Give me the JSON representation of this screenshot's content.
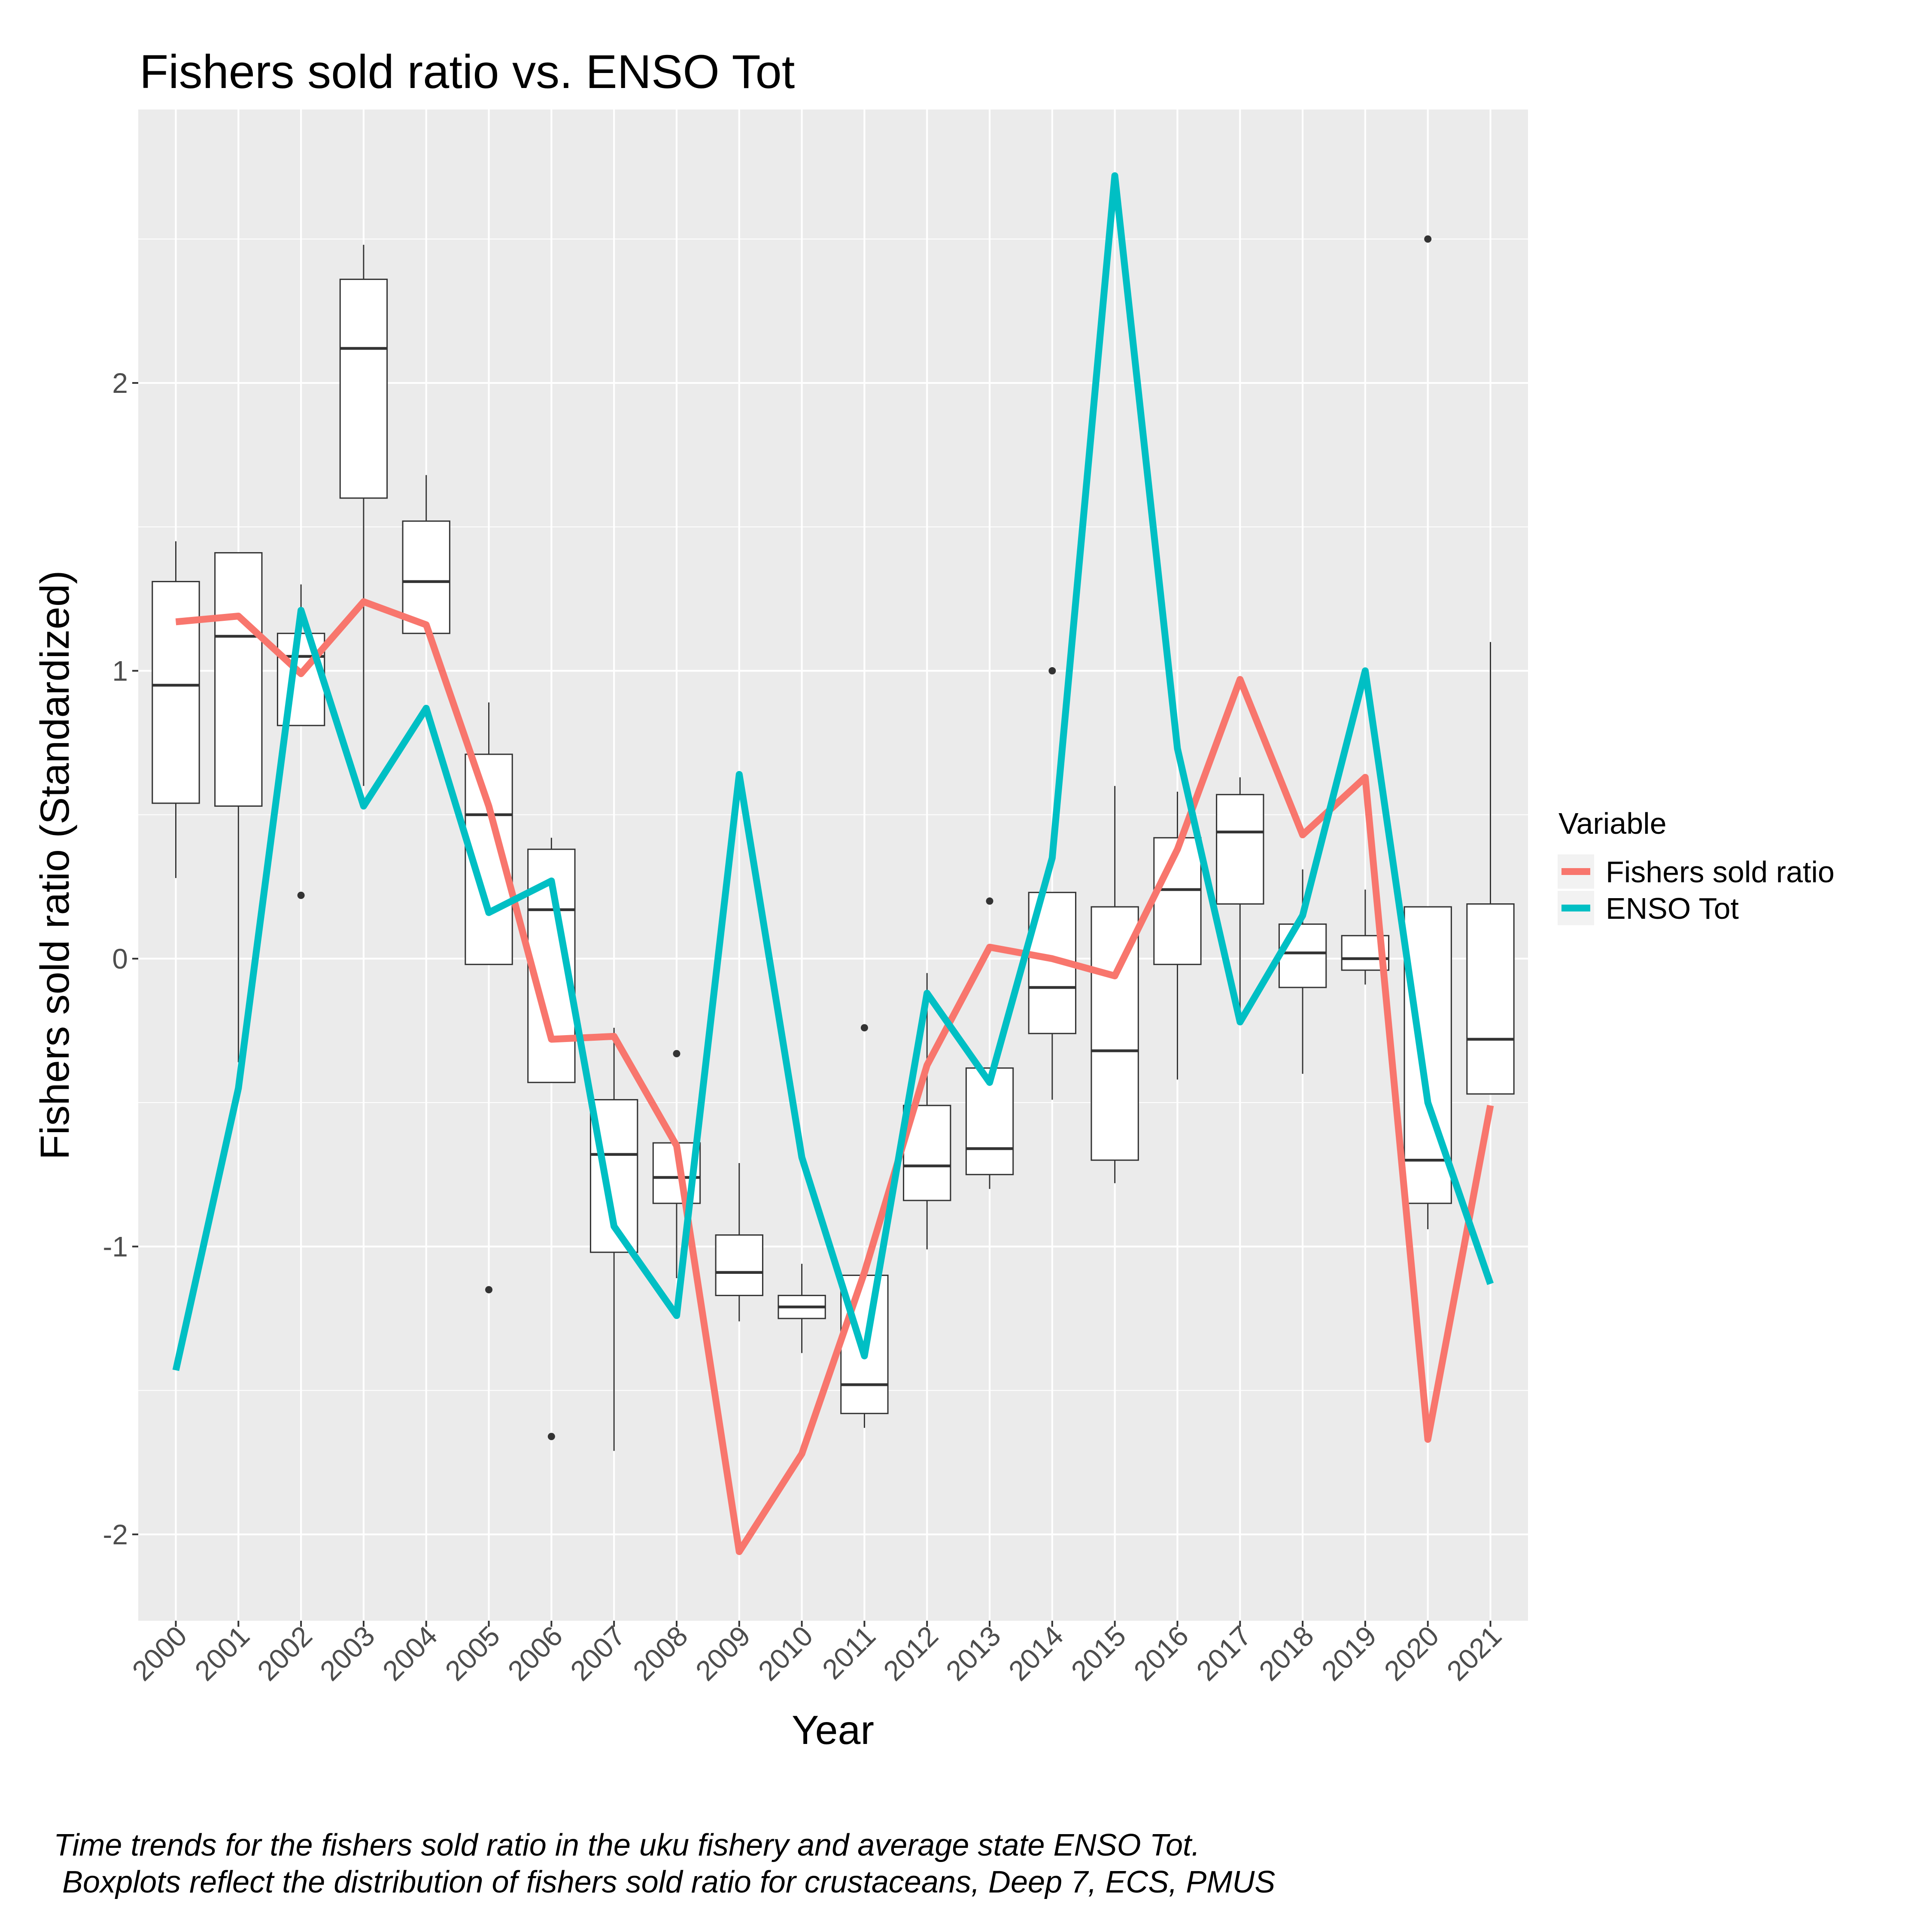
{
  "chart_data": {
    "type": "line",
    "title": "Fishers sold ratio vs. ENSO Tot",
    "xlabel": "Year",
    "ylabel": "Fishers sold ratio (Standardized)",
    "caption_lines": [
      "Time trends for the fishers sold ratio in the uku fishery and average state ENSO Tot.",
      " Boxplots reflect the distribution of fishers sold ratio for crustaceans, Deep 7, ECS, PMUS"
    ],
    "categories": [
      "2000",
      "2001",
      "2002",
      "2003",
      "2004",
      "2005",
      "2006",
      "2007",
      "2008",
      "2009",
      "2010",
      "2011",
      "2012",
      "2013",
      "2014",
      "2015",
      "2016",
      "2017",
      "2018",
      "2019",
      "2020",
      "2021"
    ],
    "ylim": [
      -2.3,
      2.95
    ],
    "yticks": [
      -2,
      -1,
      0,
      1,
      2
    ],
    "ytick_labels": [
      "-2",
      "-1",
      "0",
      "1",
      "2"
    ],
    "grid": true,
    "legend": {
      "title": "Variable",
      "position": "right"
    },
    "series": [
      {
        "name": "Fishers sold ratio",
        "color": "#F8766D",
        "values": [
          1.17,
          1.19,
          0.99,
          1.24,
          1.16,
          0.53,
          -0.28,
          -0.27,
          -0.65,
          -2.06,
          -1.72,
          -1.09,
          -0.37,
          0.04,
          0.0,
          -0.06,
          0.38,
          0.97,
          0.43,
          0.63,
          -1.67,
          -0.51
        ]
      },
      {
        "name": "ENSO Tot",
        "color": "#00BFC4",
        "values": [
          -1.43,
          -0.45,
          1.21,
          0.53,
          0.87,
          0.16,
          0.27,
          -0.93,
          -1.24,
          0.64,
          -0.69,
          -1.38,
          -0.12,
          -0.43,
          0.35,
          2.72,
          0.73,
          -0.22,
          0.15,
          1.0,
          -0.5,
          -1.13
        ]
      }
    ],
    "boxplots": [
      {
        "category": "2000",
        "lower_whisker": 0.28,
        "q1": 0.54,
        "median": 0.95,
        "q3": 1.31,
        "upper_whisker": 1.45,
        "outliers": []
      },
      {
        "category": "2001",
        "lower_whisker": -0.36,
        "q1": 0.53,
        "median": 1.12,
        "q3": 1.41,
        "upper_whisker": 1.41,
        "outliers": []
      },
      {
        "category": "2002",
        "lower_whisker": 0.81,
        "q1": 0.81,
        "median": 1.05,
        "q3": 1.13,
        "upper_whisker": 1.3,
        "outliers": [
          0.22
        ]
      },
      {
        "category": "2003",
        "lower_whisker": 0.6,
        "q1": 1.6,
        "median": 2.12,
        "q3": 2.36,
        "upper_whisker": 2.48,
        "outliers": []
      },
      {
        "category": "2004",
        "lower_whisker": 1.13,
        "q1": 1.13,
        "median": 1.31,
        "q3": 1.52,
        "upper_whisker": 1.68,
        "outliers": []
      },
      {
        "category": "2005",
        "lower_whisker": -0.02,
        "q1": -0.02,
        "median": 0.5,
        "q3": 0.71,
        "upper_whisker": 0.89,
        "outliers": [
          -1.15
        ]
      },
      {
        "category": "2006",
        "lower_whisker": -0.43,
        "q1": -0.43,
        "median": 0.17,
        "q3": 0.38,
        "upper_whisker": 0.42,
        "outliers": [
          -1.66
        ]
      },
      {
        "category": "2007",
        "lower_whisker": -1.71,
        "q1": -1.02,
        "median": -0.68,
        "q3": -0.49,
        "upper_whisker": -0.24,
        "outliers": []
      },
      {
        "category": "2008",
        "lower_whisker": -1.11,
        "q1": -0.85,
        "median": -0.76,
        "q3": -0.64,
        "upper_whisker": -0.64,
        "outliers": [
          -0.33
        ]
      },
      {
        "category": "2009",
        "lower_whisker": -1.26,
        "q1": -1.17,
        "median": -1.09,
        "q3": -0.96,
        "upper_whisker": -0.71,
        "outliers": []
      },
      {
        "category": "2010",
        "lower_whisker": -1.37,
        "q1": -1.25,
        "median": -1.21,
        "q3": -1.17,
        "upper_whisker": -1.06,
        "outliers": []
      },
      {
        "category": "2011",
        "lower_whisker": -1.63,
        "q1": -1.58,
        "median": -1.48,
        "q3": -1.1,
        "upper_whisker": -1.1,
        "outliers": [
          -0.24
        ]
      },
      {
        "category": "2012",
        "lower_whisker": -1.01,
        "q1": -0.84,
        "median": -0.72,
        "q3": -0.51,
        "upper_whisker": -0.05,
        "outliers": []
      },
      {
        "category": "2013",
        "lower_whisker": -0.8,
        "q1": -0.75,
        "median": -0.66,
        "q3": -0.38,
        "upper_whisker": -0.38,
        "outliers": [
          0.2
        ]
      },
      {
        "category": "2014",
        "lower_whisker": -0.49,
        "q1": -0.26,
        "median": -0.1,
        "q3": 0.23,
        "upper_whisker": 0.23,
        "outliers": [
          1.0
        ]
      },
      {
        "category": "2015",
        "lower_whisker": -0.78,
        "q1": -0.7,
        "median": -0.32,
        "q3": 0.18,
        "upper_whisker": 0.6,
        "outliers": []
      },
      {
        "category": "2016",
        "lower_whisker": -0.42,
        "q1": -0.02,
        "median": 0.24,
        "q3": 0.42,
        "upper_whisker": 0.58,
        "outliers": []
      },
      {
        "category": "2017",
        "lower_whisker": -0.2,
        "q1": 0.19,
        "median": 0.44,
        "q3": 0.57,
        "upper_whisker": 0.63,
        "outliers": []
      },
      {
        "category": "2018",
        "lower_whisker": -0.4,
        "q1": -0.1,
        "median": 0.02,
        "q3": 0.12,
        "upper_whisker": 0.31,
        "outliers": []
      },
      {
        "category": "2019",
        "lower_whisker": -0.09,
        "q1": -0.04,
        "median": 0.0,
        "q3": 0.08,
        "upper_whisker": 0.24,
        "outliers": []
      },
      {
        "category": "2020",
        "lower_whisker": -0.94,
        "q1": -0.85,
        "median": -0.7,
        "q3": 0.18,
        "upper_whisker": 0.18,
        "outliers": [
          2.5
        ]
      },
      {
        "category": "2021",
        "lower_whisker": -0.47,
        "q1": -0.47,
        "median": -0.28,
        "q3": 0.19,
        "upper_whisker": 1.1,
        "outliers": []
      }
    ]
  }
}
